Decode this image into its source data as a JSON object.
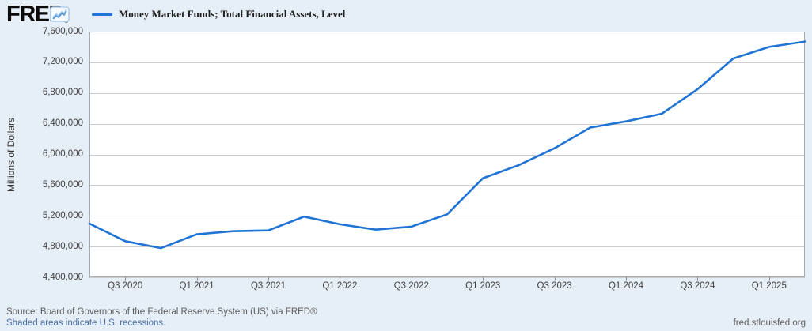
{
  "header": {
    "logo_text": "FRED",
    "logo_registered": "®",
    "legend_label": "Money Market Funds; Total Financial Assets, Level"
  },
  "colors": {
    "line": "#2074d4",
    "grid": "#cccccc",
    "plot_border": "#aaaaaa",
    "tick": "#888888",
    "plot_bg": "#ffffff",
    "page_bg": "#e6eef7"
  },
  "chart_data": {
    "type": "line",
    "title": "Money Market Funds; Total Financial Assets, Level",
    "ylabel": "Millions of Dollars",
    "xlabel": "",
    "x": [
      "Q2 2020",
      "Q3 2020",
      "Q4 2020",
      "Q1 2021",
      "Q2 2021",
      "Q3 2021",
      "Q4 2021",
      "Q1 2022",
      "Q2 2022",
      "Q3 2022",
      "Q4 2022",
      "Q1 2023",
      "Q2 2023",
      "Q3 2023",
      "Q4 2023",
      "Q1 2024",
      "Q2 2024",
      "Q3 2024",
      "Q4 2024",
      "Q1 2025",
      "Q2 2025"
    ],
    "values": [
      5100000,
      4870000,
      4780000,
      4960000,
      5000000,
      5010000,
      5190000,
      5090000,
      5020000,
      5060000,
      5220000,
      5690000,
      5860000,
      6080000,
      6350000,
      6430000,
      6530000,
      6850000,
      7250000,
      7400000,
      7470000
    ],
    "ylim": [
      4400000,
      7600000
    ],
    "yticks": [
      4400000,
      4800000,
      5200000,
      5600000,
      6000000,
      6400000,
      6800000,
      7200000,
      7600000
    ],
    "xtick_labels": [
      "Q3 2020",
      "Q1 2021",
      "Q3 2021",
      "Q1 2022",
      "Q3 2022",
      "Q1 2023",
      "Q3 2023",
      "Q1 2024",
      "Q3 2024",
      "Q1 2025"
    ],
    "xtick_indices": [
      1,
      3,
      5,
      7,
      9,
      11,
      13,
      15,
      17,
      19
    ],
    "grid": "horizontal",
    "legend_position": "top-left"
  },
  "footer": {
    "source_line": "Source: Board of Governors of the Federal Reserve System (US) via FRED®",
    "recession_note": "Shaded areas indicate U.S. recessions.",
    "site_link": "fred.stlouisfed.org"
  }
}
